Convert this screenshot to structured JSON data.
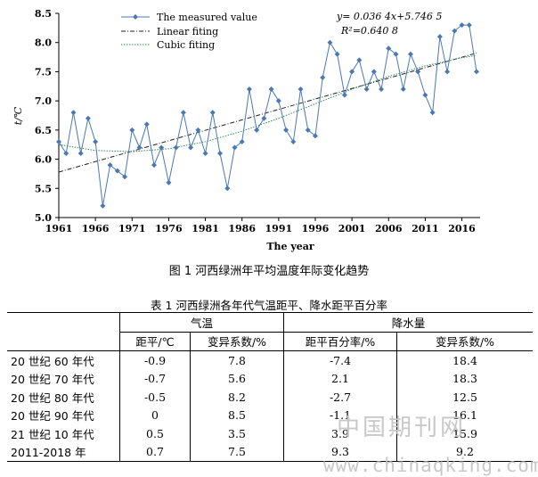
{
  "chart_data": {
    "type": "line",
    "xlabel": "The year",
    "ylabel": "t/℃",
    "xlim": [
      1961,
      2018
    ],
    "ylim": [
      5.0,
      8.5
    ],
    "x_ticks": [
      1961,
      1966,
      1971,
      1976,
      1981,
      1986,
      1991,
      1996,
      2001,
      2006,
      2011,
      2016
    ],
    "y_ticks": [
      "5.0",
      "5.5",
      "6.0",
      "6.5",
      "7.0",
      "7.5",
      "8.0",
      "8.5"
    ],
    "legend": {
      "placement": "top-left",
      "entries": [
        "The measured value",
        "Linear fiting",
        "Cubic fiting"
      ]
    },
    "equation": "y= 0.036 4x+5.746 5",
    "r2": "R²=0.640 8",
    "series": [
      {
        "name": "The measured value",
        "x": [
          1961,
          1962,
          1963,
          1964,
          1965,
          1966,
          1967,
          1968,
          1969,
          1970,
          1971,
          1972,
          1973,
          1974,
          1975,
          1976,
          1977,
          1978,
          1979,
          1980,
          1981,
          1982,
          1983,
          1984,
          1985,
          1986,
          1987,
          1988,
          1989,
          1990,
          1991,
          1992,
          1993,
          1994,
          1995,
          1996,
          1997,
          1998,
          1999,
          2000,
          2001,
          2002,
          2003,
          2004,
          2005,
          2006,
          2007,
          2008,
          2009,
          2010,
          2011,
          2012,
          2013,
          2014,
          2015,
          2016,
          2017,
          2018
        ],
        "y": [
          6.3,
          6.1,
          6.8,
          6.1,
          6.7,
          6.3,
          5.2,
          5.9,
          5.8,
          5.7,
          6.5,
          6.2,
          6.6,
          5.9,
          6.2,
          5.6,
          6.2,
          6.8,
          6.2,
          6.5,
          6.1,
          6.8,
          6.1,
          5.5,
          6.2,
          6.3,
          7.2,
          6.5,
          6.7,
          7.2,
          7.0,
          6.5,
          6.3,
          7.2,
          6.5,
          6.4,
          7.4,
          8.0,
          7.8,
          7.1,
          7.5,
          7.7,
          7.2,
          7.5,
          7.2,
          7.9,
          7.8,
          7.2,
          7.8,
          7.5,
          7.1,
          6.8,
          8.1,
          7.5,
          8.2,
          8.3,
          8.3,
          7.5
        ]
      },
      {
        "name": "Linear fiting",
        "x": [
          1961,
          2018
        ],
        "y": [
          5.78,
          7.82
        ]
      },
      {
        "name": "Cubic fiting",
        "x": [
          1961,
          1966,
          1971,
          1976,
          1981,
          1986,
          1991,
          1996,
          2001,
          2006,
          2011,
          2016,
          2018
        ],
        "y": [
          6.25,
          6.15,
          6.13,
          6.18,
          6.3,
          6.48,
          6.7,
          6.95,
          7.2,
          7.42,
          7.6,
          7.74,
          7.78
        ]
      }
    ],
    "colors": {
      "measured": "#4a78b4",
      "linear": "#222222",
      "cubic": "#2e8b57"
    }
  },
  "figure_caption": "图 1  河西绿洲年平均温度年际变化趋势",
  "table": {
    "caption": "表 1  河西绿洲各年代气温距平、降水距平百分率",
    "group_headers": [
      "气温",
      "降水量"
    ],
    "sub_headers": [
      "距平/℃",
      "变异系数/%",
      "距平百分率/%",
      "变异系数/%"
    ],
    "rows": [
      {
        "label": "20 世纪 60 年代",
        "values": [
          "-0.9",
          "7.8",
          "-7.4",
          "18.4"
        ]
      },
      {
        "label": "20 世纪 70 年代",
        "values": [
          "-0.7",
          "5.6",
          "2.1",
          "18.3"
        ]
      },
      {
        "label": "20 世纪 80 年代",
        "values": [
          "-0.5",
          "8.2",
          "-2.7",
          "12.5"
        ]
      },
      {
        "label": "20 世纪 90 年代",
        "values": [
          "0",
          "8.5",
          "-1.1",
          "16.1"
        ]
      },
      {
        "label": "21 世纪 10 年代",
        "values": [
          "0.5",
          "3.5",
          "3.9",
          "15.9"
        ]
      },
      {
        "label": "2011-2018 年",
        "values": [
          "0.7",
          "7.5",
          "9.3",
          "9.2"
        ]
      }
    ]
  },
  "watermark": {
    "cn": "中国期刊网",
    "url": "www.chinaqking.com"
  }
}
